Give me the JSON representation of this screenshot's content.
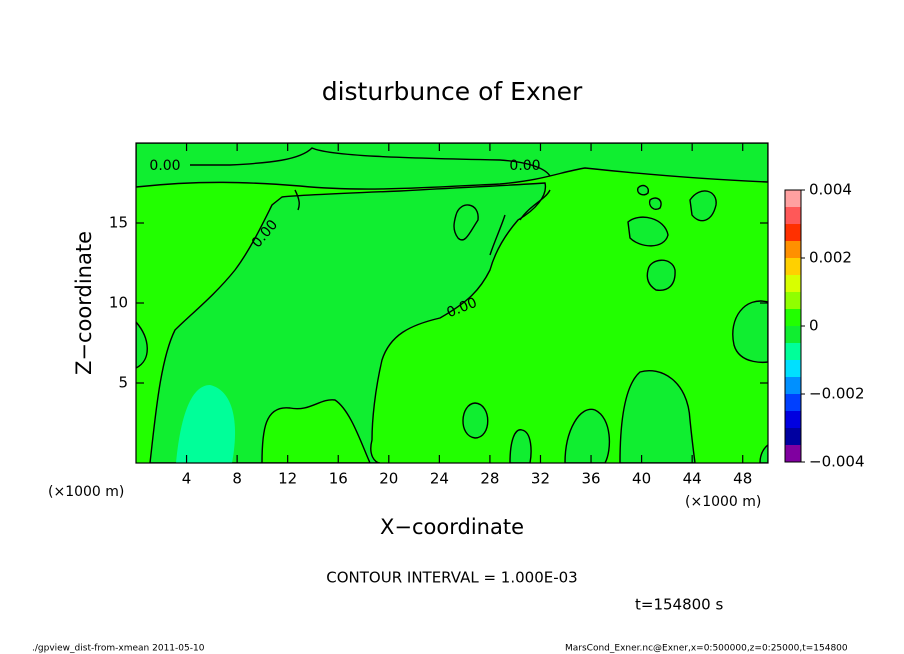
{
  "chart_data": {
    "type": "contour",
    "title": "disturbunce of Exner",
    "xlabel": "X−coordinate",
    "ylabel": "Z−coordinate",
    "x_unit_left": "(×1000 m)",
    "x_unit_right": "(×1000 m)",
    "xlim": [
      0,
      50
    ],
    "ylim": [
      0,
      20
    ],
    "xticks": [
      4,
      8,
      12,
      16,
      20,
      24,
      28,
      32,
      36,
      40,
      44,
      48
    ],
    "yticks": [
      5,
      10,
      15
    ],
    "contour_labels": [
      "0.00",
      "0.00",
      "0.00",
      "0.00"
    ],
    "colorbar": {
      "clim": [
        -0.004,
        0.004
      ],
      "levels": [
        -0.004,
        -0.0035,
        -0.003,
        -0.0025,
        -0.002,
        -0.0015,
        -0.001,
        -0.0005,
        0,
        0.0005,
        0.001,
        0.0015,
        0.002,
        0.0025,
        0.003,
        0.0035,
        0.004
      ],
      "colors": [
        "#8000a0",
        "#0000a0",
        "#0000e0",
        "#0040ff",
        "#0090ff",
        "#00e0ff",
        "#00ff99",
        "#10ee30",
        "#22ff00",
        "#90ff00",
        "#d8ff00",
        "#ffd000",
        "#ff9000",
        "#ff3000",
        "#ff5858",
        "#ffa0a0"
      ],
      "ticks": [
        {
          "value": -0.004,
          "label": "−0.004"
        },
        {
          "value": -0.002,
          "label": "−0.002"
        },
        0,
        0.002,
        0.004
      ]
    },
    "contour_interval": "CONTOUR INTERVAL = 1.000E-03",
    "time_label": "t=154800 s",
    "footer_left": "./gpview_dist-from-xmean  2011-05-10",
    "footer_right": "MarsCond_Exner.nc@Exner,x=0:500000,z=0:25000,t=154800"
  }
}
